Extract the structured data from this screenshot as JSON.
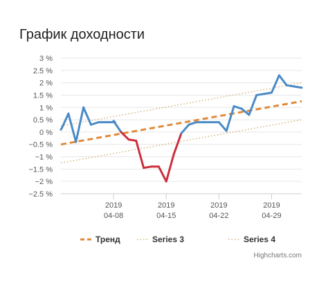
{
  "title": "График доходности",
  "credits": "Highcharts.com",
  "colors": {
    "positive": "#4a8ac6",
    "negative": "#cc2e3c",
    "trend": "#e08a3a",
    "band": "#d6b17a",
    "grid": "#e6e6e6",
    "axis": "#cccccc"
  },
  "chart_data": {
    "type": "line",
    "title": "График доходности",
    "ylim": [
      -2.5,
      3
    ],
    "y_ticks": [
      3,
      2.5,
      2,
      1.5,
      1,
      0.5,
      0,
      -0.5,
      -1,
      -1.5,
      -2,
      -2.5
    ],
    "y_tick_labels": [
      "3 %",
      "2.5 %",
      "2 %",
      "1.5 %",
      "1 %",
      "0.5 %",
      "0 %",
      "−0.5 %",
      "−1 %",
      "−1.5 %",
      "−2 %",
      "−2.5 %"
    ],
    "xlim": [
      "2019-04-01",
      "2019-05-03"
    ],
    "x_ticks": [
      {
        "date": "2019-04-08",
        "year": "2019",
        "label": "04-08"
      },
      {
        "date": "2019-04-15",
        "year": "2019",
        "label": "04-15"
      },
      {
        "date": "2019-04-22",
        "year": "2019",
        "label": "04-22"
      },
      {
        "date": "2019-04-29",
        "year": "2019",
        "label": "04-29"
      }
    ],
    "grid": "horizontal",
    "legend_position": "bottom-center",
    "negative_color_threshold": "-0.02",
    "series": [
      {
        "kind": "main",
        "points": [
          {
            "x": "2019-04-01",
            "y": 0.1
          },
          {
            "x": "2019-04-01",
            "y": 0.2
          },
          {
            "x": "2019-04-02",
            "y": 0.75
          },
          {
            "x": "2019-04-03",
            "y": -0.4
          },
          {
            "x": "2019-04-04",
            "y": 1.0
          },
          {
            "x": "2019-04-05",
            "y": 0.3
          },
          {
            "x": "2019-04-06",
            "y": 0.4
          },
          {
            "x": "2019-04-07",
            "y": 0.4
          },
          {
            "x": "2019-04-08",
            "y": 0.4
          },
          {
            "x": "2019-04-08",
            "y": 0.4
          },
          {
            "x": "2019-04-08",
            "y": 0.45
          },
          {
            "x": "2019-04-09",
            "y": 0.0
          },
          {
            "x": "2019-04-10",
            "y": -0.3
          },
          {
            "x": "2019-04-11",
            "y": -0.35
          },
          {
            "x": "2019-04-12",
            "y": -1.45
          },
          {
            "x": "2019-04-13",
            "y": -1.4
          },
          {
            "x": "2019-04-14",
            "y": -1.4
          },
          {
            "x": "2019-04-15",
            "y": -2.0
          },
          {
            "x": "2019-04-16",
            "y": -0.9
          },
          {
            "x": "2019-04-17",
            "y": -0.05
          },
          {
            "x": "2019-04-18",
            "y": 0.3
          },
          {
            "x": "2019-04-19",
            "y": 0.4
          },
          {
            "x": "2019-04-20",
            "y": 0.4
          },
          {
            "x": "2019-04-21",
            "y": 0.4
          },
          {
            "x": "2019-04-22",
            "y": 0.4
          },
          {
            "x": "2019-04-23",
            "y": 0.05
          },
          {
            "x": "2019-04-24",
            "y": 1.05
          },
          {
            "x": "2019-04-25",
            "y": 0.95
          },
          {
            "x": "2019-04-26",
            "y": 0.7
          },
          {
            "x": "2019-04-27",
            "y": 1.5
          },
          {
            "x": "2019-04-28",
            "y": 1.55
          },
          {
            "x": "2019-04-29",
            "y": 1.6
          },
          {
            "x": "2019-04-30",
            "y": 2.3
          },
          {
            "x": "2019-05-01",
            "y": 1.9
          },
          {
            "x": "2019-05-02",
            "y": 1.85
          },
          {
            "x": "2019-05-03",
            "y": 1.8
          }
        ]
      },
      {
        "kind": "trend",
        "name": "Тренд",
        "points": [
          {
            "x": "2019-04-01",
            "y": -0.5
          },
          {
            "x": "2019-05-03",
            "y": 1.25
          }
        ]
      },
      {
        "kind": "band",
        "name": "Series 3",
        "points": [
          {
            "x": "2019-04-01",
            "y": 0.25
          },
          {
            "x": "2019-05-03",
            "y": 2.0
          }
        ]
      },
      {
        "kind": "band",
        "name": "Series 4",
        "points": [
          {
            "x": "2019-04-01",
            "y": -1.25
          },
          {
            "x": "2019-05-03",
            "y": 0.5
          }
        ]
      }
    ]
  }
}
